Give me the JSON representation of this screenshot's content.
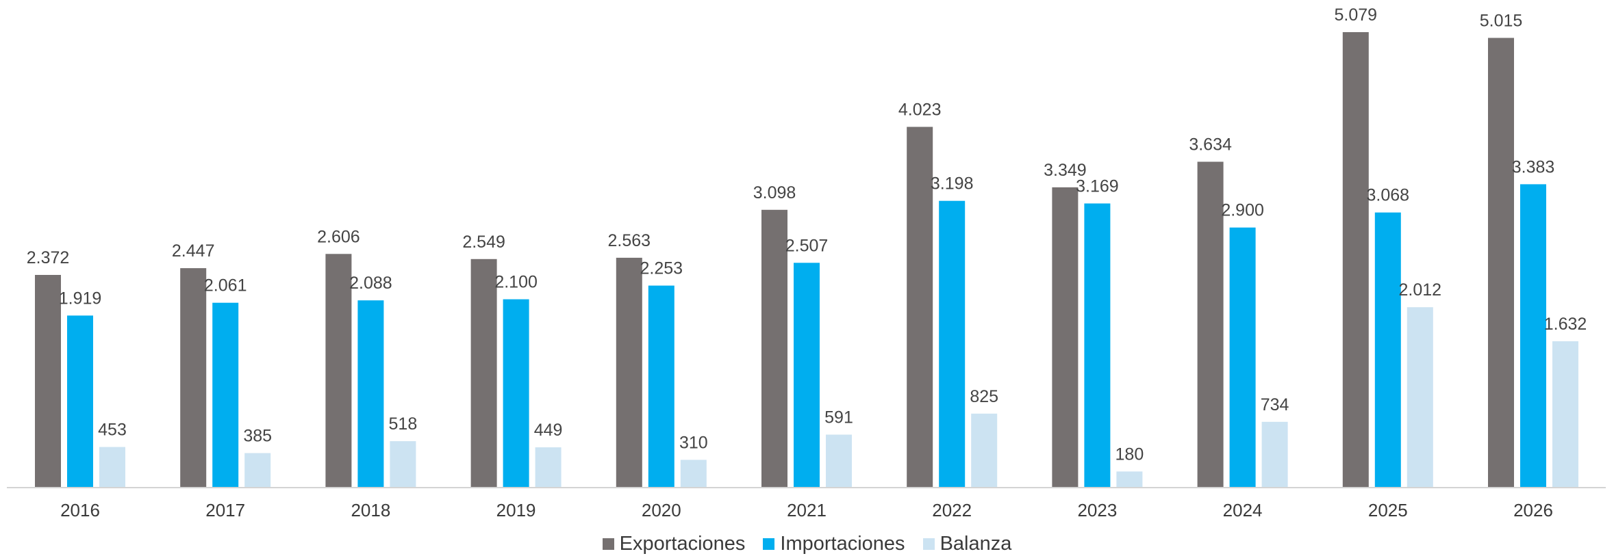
{
  "chart_data": {
    "type": "bar",
    "categories": [
      "2016",
      "2017",
      "2018",
      "2019",
      "2020",
      "2021",
      "2022",
      "2023",
      "2024",
      "2025",
      "2026"
    ],
    "series": [
      {
        "name": "Exportaciones",
        "color": "#757070",
        "values": [
          2372,
          2447,
          2606,
          2549,
          2563,
          3098,
          4023,
          3349,
          3634,
          5079,
          5015
        ],
        "labels": [
          "2.372",
          "2.447",
          "2.606",
          "2.549",
          "2.563",
          "3.098",
          "4.023",
          "3.349",
          "3.634",
          "5.079",
          "5.015"
        ]
      },
      {
        "name": "Importaciones",
        "color": "#00AEEF",
        "values": [
          1919,
          2061,
          2088,
          2100,
          2253,
          2507,
          3198,
          3169,
          2900,
          3068,
          3383
        ],
        "labels": [
          "1.919",
          "2.061",
          "2.088",
          "2.100",
          "2.253",
          "2.507",
          "3.198",
          "3.169",
          "2.900",
          "3.068",
          "3.383"
        ]
      },
      {
        "name": "Balanza",
        "color": "#CCE3F2",
        "values": [
          453,
          385,
          518,
          449,
          310,
          591,
          825,
          180,
          734,
          2012,
          1632
        ],
        "labels": [
          "453",
          "385",
          "518",
          "449",
          "310",
          "591",
          "825",
          "180",
          "734",
          "2.012",
          "1.632"
        ]
      }
    ],
    "ylim": [
      0,
      5200
    ],
    "grid": false,
    "legend_position": "bottom-center",
    "title": "",
    "xlabel": "",
    "ylabel": ""
  }
}
